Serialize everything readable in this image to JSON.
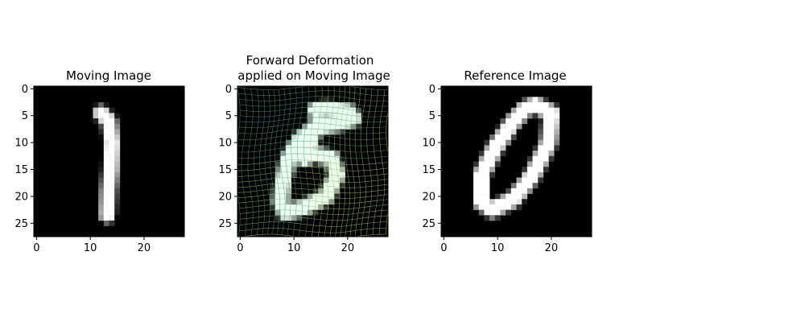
{
  "figure": {
    "background": "#ffffff",
    "panels": [
      {
        "id": "moving",
        "title_lines": [
          "Moving Image"
        ],
        "xticks": [
          0,
          10,
          20
        ],
        "yticks": [
          0,
          5,
          10,
          15,
          20,
          25
        ],
        "xlim": [
          -0.5,
          27.5
        ],
        "ylim": [
          27.5,
          -0.5
        ],
        "content": "grayscale digit 1 (slightly slanted), white strokes on black",
        "colormap": "gray"
      },
      {
        "id": "deformed",
        "title_lines": [
          "Forward Deformation",
          "applied on Moving Image"
        ],
        "xticks": [
          0,
          10,
          20
        ],
        "yticks": [
          0,
          5,
          10,
          15,
          20,
          25
        ],
        "xlim": [
          -0.5,
          27.5
        ],
        "ylim": [
          27.5,
          -0.5
        ],
        "content": "warped digit resembling 6/5 in grayscale with an overlaid wavy deformation grid",
        "grid_colors": [
          "#3b3b8a",
          "#3f9a8a",
          "#9fc05a",
          "#e0c84a"
        ],
        "colormap": "gray"
      },
      {
        "id": "reference",
        "title_lines": [
          "Reference Image"
        ],
        "xticks": [
          0,
          10,
          20
        ],
        "yticks": [
          0,
          5,
          10,
          15,
          20,
          25
        ],
        "xlim": [
          -0.5,
          27.5
        ],
        "ylim": [
          27.5,
          -0.5
        ],
        "content": "grayscale digit 0 (tilted oval), white strokes on black",
        "colormap": "gray"
      }
    ]
  }
}
